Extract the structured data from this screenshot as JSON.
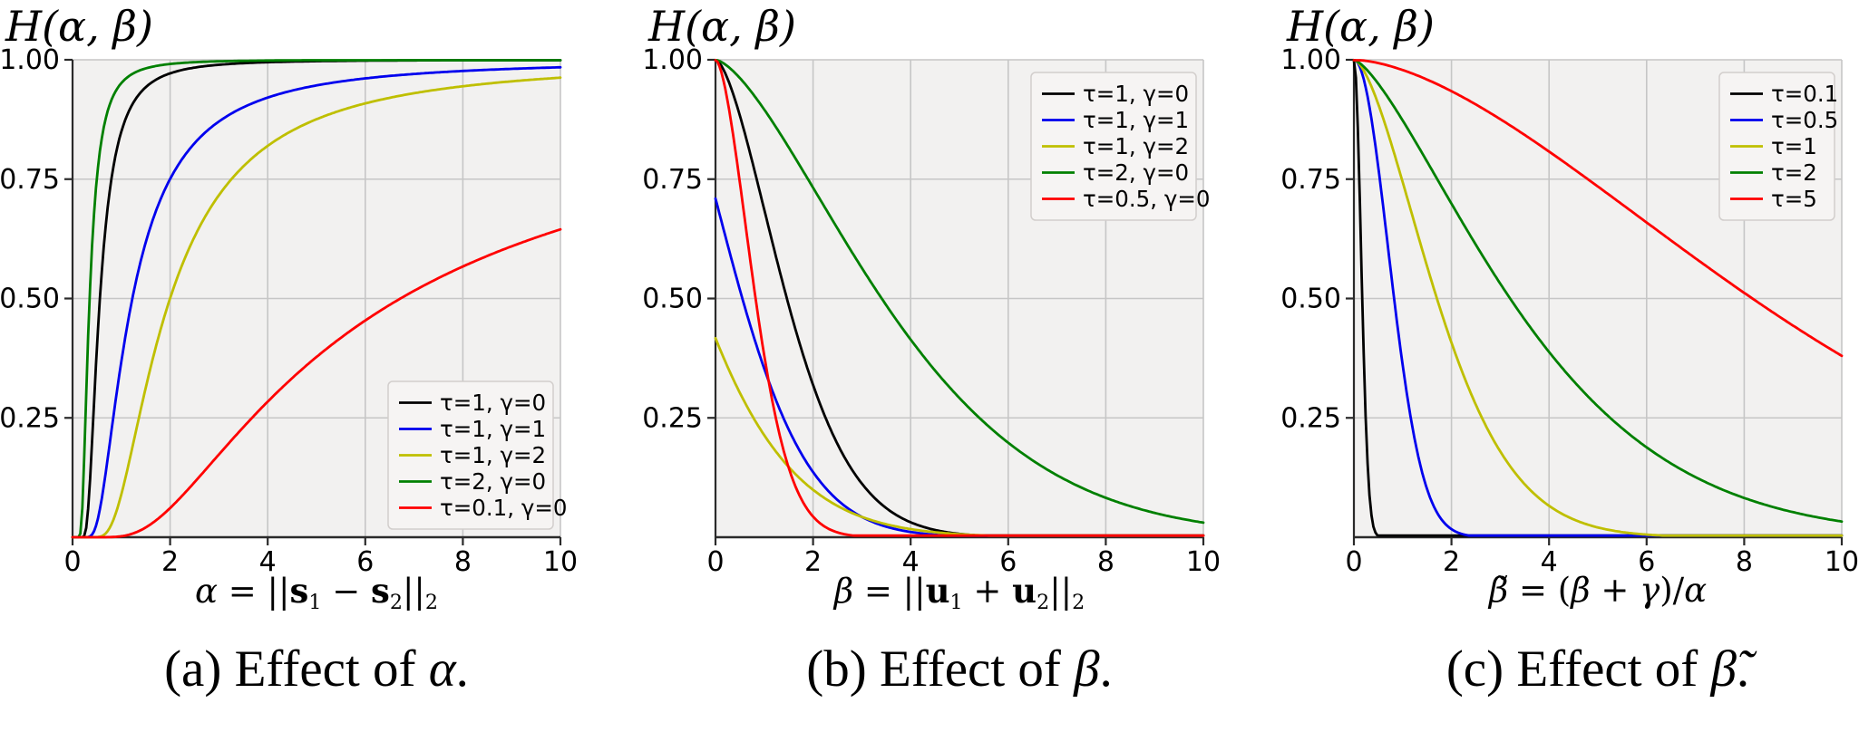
{
  "figure": {
    "background": "#ffffff",
    "axis_title": "H(α, β)",
    "colors": {
      "black": "#000000",
      "blue": "#0000ee",
      "yellow": "#bfbf00",
      "green": "#008000",
      "red": "#ff0000",
      "plot_background": "#f2f1f0",
      "grid": "#c6c6c6",
      "spine": "#2a2a2a",
      "legend_background": "#f6f4f3",
      "legend_border": "#d2cecc"
    }
  },
  "chart_data": {
    "type": "line",
    "grid": true,
    "xlim": [
      0,
      10
    ],
    "ylim": [
      0,
      1
    ],
    "x_ticks": [
      "0",
      "2",
      "4",
      "6",
      "8",
      "10"
    ],
    "y_ticks": [
      {
        "value": 0.25,
        "label": "0.25"
      },
      {
        "value": 0.5,
        "label": "0.50"
      },
      {
        "value": 0.75,
        "label": "0.75"
      },
      {
        "value": 1.0,
        "label": "1.00"
      }
    ],
    "panels": [
      {
        "key": "a",
        "title": "H(α, β)",
        "legend_position": "bottom-right",
        "xlabel_segments": [
          {
            "t": "α",
            "i": 1
          },
          {
            "t": " = ||"
          },
          {
            "t": "s",
            "b": 1
          },
          {
            "t": "1",
            "sub": 1
          },
          {
            "t": " − "
          },
          {
            "t": "s",
            "b": 1
          },
          {
            "t": "2",
            "sub": 1
          },
          {
            "t": "||"
          },
          {
            "t": "2",
            "sub": 1
          }
        ],
        "caption_segments": [
          {
            "t": "(a) Effect of "
          },
          {
            "t": "α",
            "i": 1
          },
          {
            "t": "."
          }
        ],
        "series": [
          {
            "label": "τ=1, γ=0",
            "color": "#000000",
            "form": "rise",
            "p": 2.5,
            "k": 0.163,
            "approx_points_x": [
              0,
              1,
              2,
              4,
              6,
              8,
              10
            ],
            "approx_points_y": [
              0,
              0.85,
              0.97,
              0.995,
              0.999,
              1.0,
              1.0
            ]
          },
          {
            "label": "τ=1, γ=1",
            "color": "#0000ee",
            "form": "rise",
            "p": 1.8,
            "k": 1.0,
            "approx_points_x": [
              0,
              1,
              2,
              4,
              6,
              8,
              10
            ],
            "approx_points_y": [
              0,
              0.37,
              0.75,
              0.94,
              0.97,
              0.98,
              0.985
            ]
          },
          {
            "label": "τ=1, γ=2",
            "color": "#bfbf00",
            "form": "rise",
            "p": 1.8,
            "k": 2.41,
            "approx_points_x": [
              0,
              1,
              2,
              4,
              6,
              8,
              10
            ],
            "approx_points_y": [
              0,
              0.09,
              0.5,
              0.82,
              0.91,
              0.95,
              0.965
            ]
          },
          {
            "label": "τ=2, γ=0",
            "color": "#008000",
            "form": "rise",
            "p": 2.5,
            "k": 0.05,
            "approx_points_x": [
              0,
              0.5,
              1,
              2,
              4,
              10
            ],
            "approx_points_y": [
              0,
              0.75,
              0.95,
              0.99,
              0.999,
              1.0
            ]
          },
          {
            "label": "τ=0.1, γ=0",
            "color": "#ff0000",
            "form": "rise",
            "p": 1.15,
            "k": 6.2,
            "approx_points_x": [
              0,
              2,
              4,
              6,
              8,
              10
            ],
            "approx_points_y": [
              0,
              0.06,
              0.31,
              0.48,
              0.58,
              0.64
            ]
          }
        ]
      },
      {
        "key": "b",
        "title": "H(α, β)",
        "legend_position": "top-right",
        "xlabel_segments": [
          {
            "t": "β",
            "i": 1
          },
          {
            "t": " = ||"
          },
          {
            "t": "u",
            "b": 1
          },
          {
            "t": "1",
            "sub": 1
          },
          {
            "t": " + "
          },
          {
            "t": "u",
            "b": 1
          },
          {
            "t": "2",
            "sub": 1
          },
          {
            "t": "||"
          },
          {
            "t": "2",
            "sub": 1
          }
        ],
        "caption_segments": [
          {
            "t": "(b) Effect of "
          },
          {
            "t": "β",
            "i": 1
          },
          {
            "t": "."
          }
        ],
        "series": [
          {
            "label": "τ=1, γ=0",
            "color": "#000000",
            "form": "fall",
            "p": 1.6,
            "s": 1.84,
            "g": 0,
            "approx_points_x": [
              0,
              1,
              2,
              4,
              6,
              8,
              10
            ],
            "approx_points_y": [
              1.0,
              0.68,
              0.32,
              0.03,
              0.004,
              0,
              0
            ]
          },
          {
            "label": "τ=1, γ=1",
            "color": "#0000ee",
            "form": "fall",
            "p": 1.6,
            "s": 1.95,
            "g": 1,
            "approx_points_x": [
              0,
              1,
              2,
              4,
              6,
              8,
              10
            ],
            "approx_points_y": [
              0.73,
              0.38,
              0.13,
              0.01,
              0,
              0,
              0
            ]
          },
          {
            "label": "τ=1, γ=2",
            "color": "#bfbf00",
            "form": "fall",
            "p": 1.4,
            "s": 2.2,
            "g": 2,
            "approx_points_x": [
              0,
              1,
              2,
              4,
              6,
              8,
              10
            ],
            "approx_points_y": [
              0.4,
              0.21,
              0.1,
              0.02,
              0,
              0,
              0
            ]
          },
          {
            "label": "τ=2, γ=0",
            "color": "#008000",
            "form": "fall",
            "p": 1.5,
            "s": 4.35,
            "g": 0,
            "approx_points_x": [
              0,
              2,
              4,
              6,
              8,
              10
            ],
            "approx_points_y": [
              1.0,
              0.74,
              0.4,
              0.19,
              0.08,
              0.03
            ]
          },
          {
            "label": "τ=0.5, γ=0",
            "color": "#ff0000",
            "form": "fall",
            "p": 1.7,
            "s": 1.02,
            "g": 0,
            "approx_points_x": [
              0,
              0.5,
              1,
              2,
              3,
              4,
              10
            ],
            "approx_points_y": [
              1.0,
              0.78,
              0.37,
              0.04,
              0.005,
              0,
              0
            ]
          }
        ]
      },
      {
        "key": "c",
        "title": "H(α, β)",
        "legend_position": "top-right",
        "xlabel_segments": [
          {
            "t": "β̃",
            "i": 1
          },
          {
            "t": " = ("
          },
          {
            "t": "β",
            "i": 1
          },
          {
            "t": " + "
          },
          {
            "t": "γ",
            "i": 1
          },
          {
            "t": ")/"
          },
          {
            "t": "α",
            "i": 1
          }
        ],
        "caption_segments": [
          {
            "t": "(c) Effect of "
          },
          {
            "t": "β̃",
            "i": 1
          },
          {
            "t": "."
          }
        ],
        "series": [
          {
            "label": "τ=0.1",
            "color": "#000000",
            "form": "fall",
            "p": 2.0,
            "s": 0.205,
            "g": 0,
            "approx_points_x": [
              0,
              0.2,
              0.5,
              1,
              10
            ],
            "approx_points_y": [
              1.0,
              0.39,
              0.003,
              0,
              0
            ]
          },
          {
            "label": "τ=0.5",
            "color": "#0000ee",
            "form": "fall",
            "p": 2.0,
            "s": 0.99,
            "g": 0,
            "approx_points_x": [
              0,
              0.8,
              1.5,
              2,
              3,
              10
            ],
            "approx_points_y": [
              1.0,
              0.52,
              0.1,
              0.017,
              0,
              0
            ]
          },
          {
            "label": "τ=1",
            "color": "#bfbf00",
            "form": "fall",
            "p": 1.6,
            "s": 2.14,
            "g": 0,
            "approx_points_x": [
              0,
              1,
              1.7,
              3,
              4,
              6,
              10
            ],
            "approx_points_y": [
              1.0,
              0.73,
              0.5,
              0.15,
              0.065,
              0.006,
              0
            ]
          },
          {
            "label": "τ=2",
            "color": "#008000",
            "form": "fall",
            "p": 1.4,
            "s": 4.16,
            "g": 0,
            "approx_points_x": [
              0,
              2,
              3.2,
              6,
              8,
              10
            ],
            "approx_points_y": [
              1.0,
              0.71,
              0.5,
              0.19,
              0.08,
              0.033
            ]
          },
          {
            "label": "τ=5",
            "color": "#ff0000",
            "form": "fall",
            "p": 1.65,
            "s": 10.2,
            "g": 0,
            "approx_points_x": [
              0,
              2,
              4,
              6,
              8,
              10
            ],
            "approx_points_y": [
              1.0,
              0.93,
              0.8,
              0.65,
              0.51,
              0.39
            ]
          }
        ]
      }
    ]
  }
}
